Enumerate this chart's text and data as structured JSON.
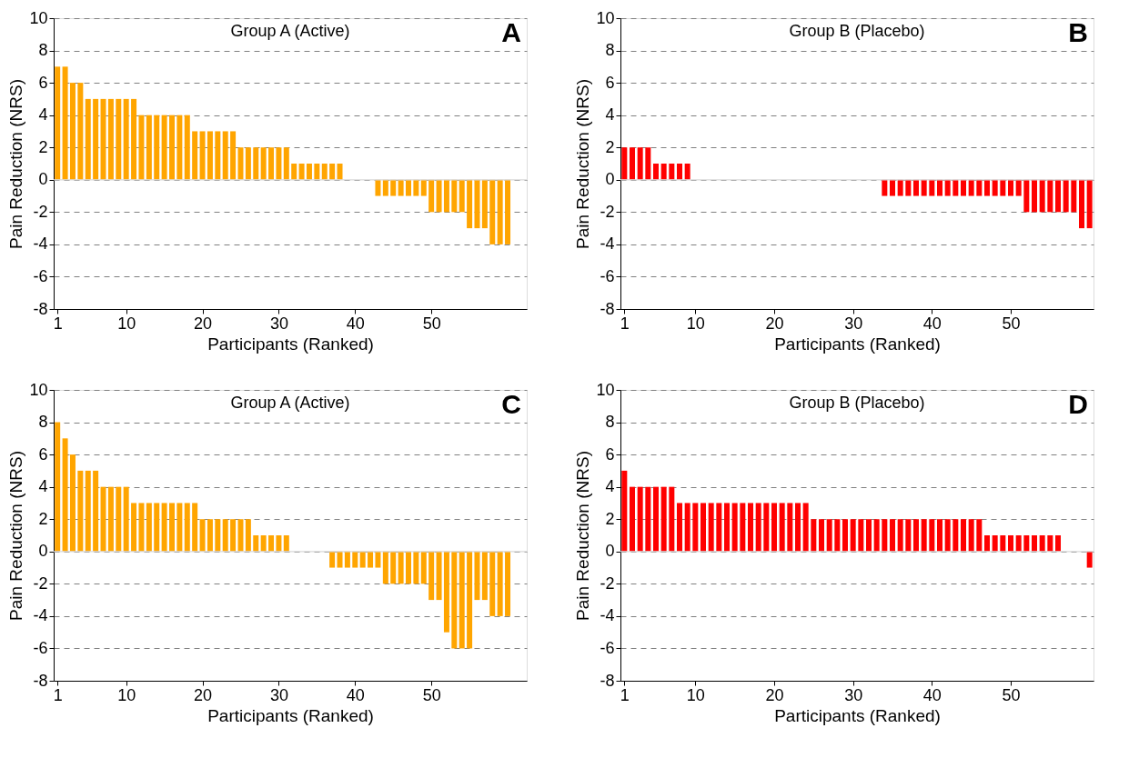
{
  "chart_data": [
    {
      "type": "bar",
      "title": "Group A (Active)",
      "xlabel": "Participants (Ranked)",
      "ylabel": "Pain Reduction (NRS)",
      "annotations": [
        "A"
      ],
      "x": [
        1,
        2,
        3,
        4,
        5,
        6,
        7,
        8,
        9,
        10,
        11,
        12,
        13,
        14,
        15,
        16,
        17,
        18,
        19,
        20,
        21,
        22,
        23,
        24,
        25,
        26,
        27,
        28,
        29,
        30,
        31,
        32,
        33,
        34,
        35,
        36,
        37,
        38,
        39,
        40,
        41,
        42,
        43,
        44,
        45,
        46,
        47,
        48,
        49,
        50,
        51,
        52,
        53,
        54,
        55,
        56,
        57,
        58,
        59,
        60
      ],
      "series": [
        {
          "color": "#ffa500",
          "values": [
            7,
            7,
            6,
            6,
            5,
            5,
            5,
            5,
            5,
            5,
            5,
            4,
            4,
            4,
            4,
            4,
            4,
            4,
            3,
            3,
            3,
            3,
            3,
            3,
            2,
            2,
            2,
            2,
            2,
            2,
            2,
            1,
            1,
            1,
            1,
            1,
            1,
            1,
            0,
            0,
            0,
            0,
            -1,
            -1,
            -1,
            -1,
            -1,
            -1,
            -1,
            -2,
            -2,
            -2,
            -2,
            -2,
            -3,
            -3,
            -3,
            -4,
            -4,
            -4
          ]
        }
      ],
      "xlim": [
        0.5,
        62.5
      ],
      "xticks": [
        1,
        10,
        20,
        30,
        40,
        50
      ],
      "ylim": [
        -8,
        10
      ],
      "yticks": [
        -8,
        -6,
        -4,
        -2,
        0,
        2,
        4,
        6,
        8,
        10
      ],
      "grid": "y",
      "ref_lines": [
        {
          "axis": "y",
          "value": 0,
          "color": "#d9d9d9"
        }
      ]
    },
    {
      "type": "bar",
      "title": "Group B (Placebo)",
      "xlabel": "Participants (Ranked)",
      "ylabel": "Pain Reduction (NRS)",
      "annotations": [
        "B"
      ],
      "x": [
        1,
        2,
        3,
        4,
        5,
        6,
        7,
        8,
        9,
        10,
        11,
        12,
        13,
        14,
        15,
        16,
        17,
        18,
        19,
        20,
        21,
        22,
        23,
        24,
        25,
        26,
        27,
        28,
        29,
        30,
        31,
        32,
        33,
        34,
        35,
        36,
        37,
        38,
        39,
        40,
        41,
        42,
        43,
        44,
        45,
        46,
        47,
        48,
        49,
        50,
        51,
        52,
        53,
        54,
        55,
        56,
        57,
        58,
        59,
        60
      ],
      "series": [
        {
          "color": "#ff0000",
          "values": [
            2,
            2,
            2,
            2,
            1,
            1,
            1,
            1,
            1,
            0,
            0,
            0,
            0,
            0,
            0,
            0,
            0,
            0,
            0,
            0,
            0,
            0,
            0,
            0,
            0,
            0,
            0,
            0,
            0,
            0,
            0,
            0,
            0,
            -1,
            -1,
            -1,
            -1,
            -1,
            -1,
            -1,
            -1,
            -1,
            -1,
            -1,
            -1,
            -1,
            -1,
            -1,
            -1,
            -1,
            -1,
            -2,
            -2,
            -2,
            -2,
            -2,
            -2,
            -2,
            -3,
            -3
          ]
        }
      ],
      "xlim": [
        0.5,
        60.5
      ],
      "xticks": [
        1,
        10,
        20,
        30,
        40,
        50
      ],
      "ylim": [
        -8,
        10
      ],
      "yticks": [
        -8,
        -6,
        -4,
        -2,
        0,
        2,
        4,
        6,
        8,
        10
      ],
      "grid": "y",
      "ref_lines": [
        {
          "axis": "y",
          "value": 0,
          "color": "#d9d9d9"
        }
      ]
    },
    {
      "type": "bar",
      "title": "Group A (Active)",
      "xlabel": "Participants (Ranked)",
      "ylabel": "Pain Reduction (NRS)",
      "annotations": [
        "C"
      ],
      "x": [
        1,
        2,
        3,
        4,
        5,
        6,
        7,
        8,
        9,
        10,
        11,
        12,
        13,
        14,
        15,
        16,
        17,
        18,
        19,
        20,
        21,
        22,
        23,
        24,
        25,
        26,
        27,
        28,
        29,
        30,
        31,
        32,
        33,
        34,
        35,
        36,
        37,
        38,
        39,
        40,
        41,
        42,
        43,
        44,
        45,
        46,
        47,
        48,
        49,
        50,
        51,
        52,
        53,
        54,
        55,
        56,
        57,
        58,
        59,
        60
      ],
      "series": [
        {
          "color": "#ffa500",
          "values": [
            8,
            7,
            6,
            5,
            5,
            5,
            4,
            4,
            4,
            4,
            3,
            3,
            3,
            3,
            3,
            3,
            3,
            3,
            3,
            2,
            2,
            2,
            2,
            2,
            2,
            2,
            1,
            1,
            1,
            1,
            1,
            0,
            0,
            0,
            0,
            0,
            -1,
            -1,
            -1,
            -1,
            -1,
            -1,
            -1,
            -2,
            -2,
            -2,
            -2,
            -2,
            -2,
            -3,
            -3,
            -5,
            -6,
            -6,
            -6,
            -3,
            -3,
            -4,
            -4,
            -4
          ]
        }
      ],
      "xlim": [
        0.5,
        62.5
      ],
      "xticks": [
        1,
        10,
        20,
        30,
        40,
        50
      ],
      "ylim": [
        -8,
        10
      ],
      "yticks": [
        -8,
        -6,
        -4,
        -2,
        0,
        2,
        4,
        6,
        8,
        10
      ],
      "grid": "y",
      "ref_lines": [
        {
          "axis": "y",
          "value": 0,
          "color": "#d9d9d9"
        }
      ]
    },
    {
      "type": "bar",
      "title": "Group B (Placebo)",
      "xlabel": "Participants (Ranked)",
      "ylabel": "Pain Reduction (NRS)",
      "annotations": [
        "D"
      ],
      "x": [
        1,
        2,
        3,
        4,
        5,
        6,
        7,
        8,
        9,
        10,
        11,
        12,
        13,
        14,
        15,
        16,
        17,
        18,
        19,
        20,
        21,
        22,
        23,
        24,
        25,
        26,
        27,
        28,
        29,
        30,
        31,
        32,
        33,
        34,
        35,
        36,
        37,
        38,
        39,
        40,
        41,
        42,
        43,
        44,
        45,
        46,
        47,
        48,
        49,
        50,
        51,
        52,
        53,
        54,
        55,
        56,
        57,
        58,
        59,
        60
      ],
      "series": [
        {
          "color": "#ff0000",
          "values": [
            5,
            4,
            4,
            4,
            4,
            4,
            4,
            3,
            3,
            3,
            3,
            3,
            3,
            3,
            3,
            3,
            3,
            3,
            3,
            3,
            3,
            3,
            3,
            3,
            2,
            2,
            2,
            2,
            2,
            2,
            2,
            2,
            2,
            2,
            2,
            2,
            2,
            2,
            2,
            2,
            2,
            2,
            2,
            2,
            2,
            2,
            1,
            1,
            1,
            1,
            1,
            1,
            1,
            1,
            1,
            1,
            0,
            0,
            0,
            -1
          ]
        }
      ],
      "xlim": [
        0.5,
        60.5
      ],
      "xticks": [
        1,
        10,
        20,
        30,
        40,
        50
      ],
      "ylim": [
        -8,
        10
      ],
      "yticks": [
        -8,
        -6,
        -4,
        -2,
        0,
        2,
        4,
        6,
        8,
        10
      ],
      "grid": "y",
      "ref_lines": [
        {
          "axis": "y",
          "value": 0,
          "color": "#d9d9d9"
        }
      ]
    }
  ]
}
